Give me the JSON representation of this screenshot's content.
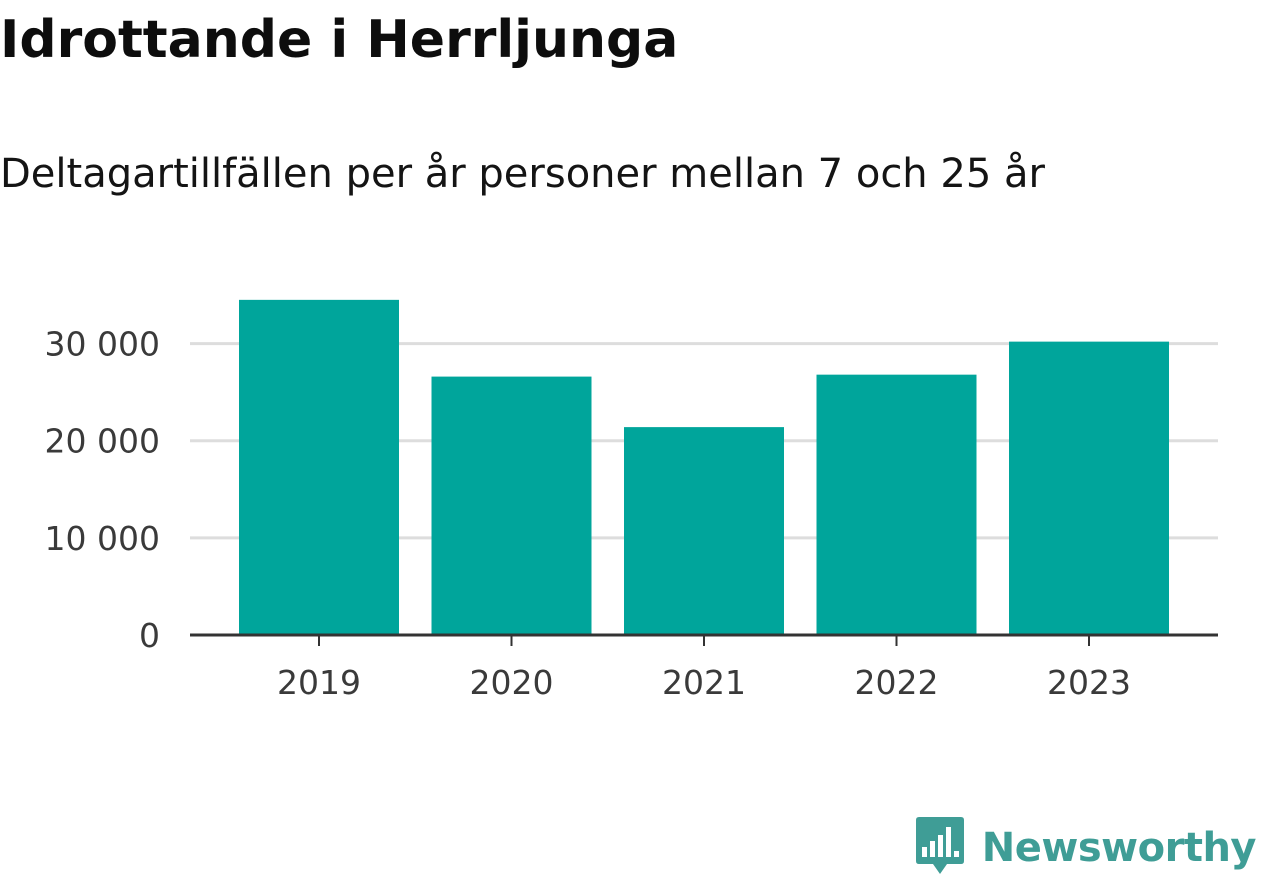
{
  "title": "Idrottande i Herrljunga",
  "subtitle": "Deltagartillfällen per år personer mellan 7 och 25 år",
  "brand": {
    "name": "Newsworthy",
    "icon": "newsworthy-logo-icon",
    "color": "#3f9d96"
  },
  "chart_data": {
    "type": "bar",
    "title": "Idrottande i Herrljunga",
    "subtitle": "Deltagartillfällen per år personer mellan 7 och 25 år",
    "categories": [
      "2019",
      "2020",
      "2021",
      "2022",
      "2023"
    ],
    "values": [
      34500,
      26600,
      21400,
      26800,
      30200
    ],
    "ylim": [
      0,
      35000
    ],
    "yticks": [
      0,
      10000,
      20000,
      30000
    ],
    "ytick_labels": [
      "0",
      "10 000",
      "20 000",
      "30 000"
    ],
    "xlabel": "",
    "ylabel": "",
    "grid": true,
    "legend": "none",
    "bar_color": "#00a59b",
    "grid_color": "#dddddd",
    "axis_color": "#333333"
  }
}
